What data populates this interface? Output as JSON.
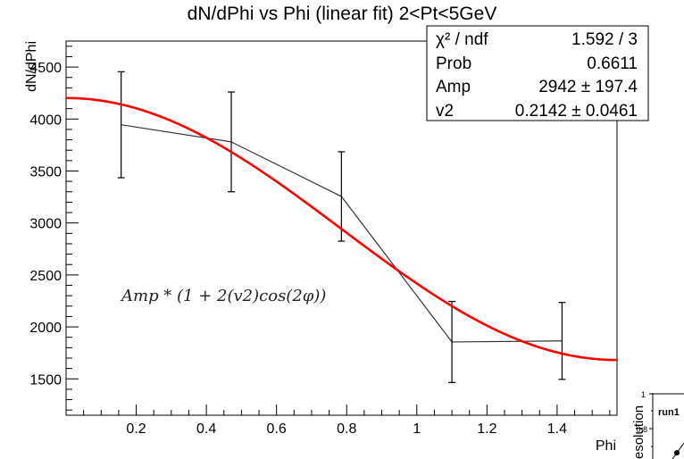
{
  "chart_data": {
    "type": "scatter",
    "title": "dN/dPhi vs Phi (linear fit) 2<Pt<5GeV",
    "xlabel": "Phi",
    "ylabel": "dN/dPhi",
    "xlim": [
      0.0,
      1.5708
    ],
    "ylim": [
      1150,
      4750
    ],
    "x_ticks": [
      0.2,
      0.4,
      0.6,
      0.8,
      1,
      1.2,
      1.4
    ],
    "x_tick_labels": [
      "0.2",
      "0.4",
      "0.6",
      "0.8",
      "1",
      "1.2",
      "1.4"
    ],
    "y_ticks": [
      1500,
      2000,
      2500,
      3000,
      3500,
      4000,
      4500
    ],
    "y_tick_labels": [
      "1500",
      "2000",
      "2500",
      "3000",
      "3500",
      "4000",
      "4500"
    ],
    "grid": false,
    "points": [
      {
        "x": 0.157,
        "y": 3945,
        "err": 510
      },
      {
        "x": 0.471,
        "y": 3780,
        "err": 480
      },
      {
        "x": 0.785,
        "y": 3255,
        "err": 430
      },
      {
        "x": 1.1,
        "y": 1855,
        "err": 390
      },
      {
        "x": 1.414,
        "y": 1865,
        "err": 370
      }
    ],
    "fit": {
      "function": "Amp*(1+2*v2*cos(2*phi))",
      "amp": 2942,
      "v2": 0.2142,
      "color": "#ff0000"
    },
    "formula_label": "Amp * (1 + 2(v2)cos(2φ))",
    "stats": [
      {
        "label": "χ² / ndf",
        "value": "1.592 / 3"
      },
      {
        "label": "Prob",
        "value": "0.6611"
      },
      {
        "label": "Amp",
        "value": "2942 ± 197.4"
      },
      {
        "label": "v2",
        "value": "0.2142 ± 0.0461"
      }
    ]
  },
  "inset": {
    "title": "run1",
    "ylabel": "esolution",
    "tick_labels": [
      "1",
      "0.8"
    ]
  }
}
